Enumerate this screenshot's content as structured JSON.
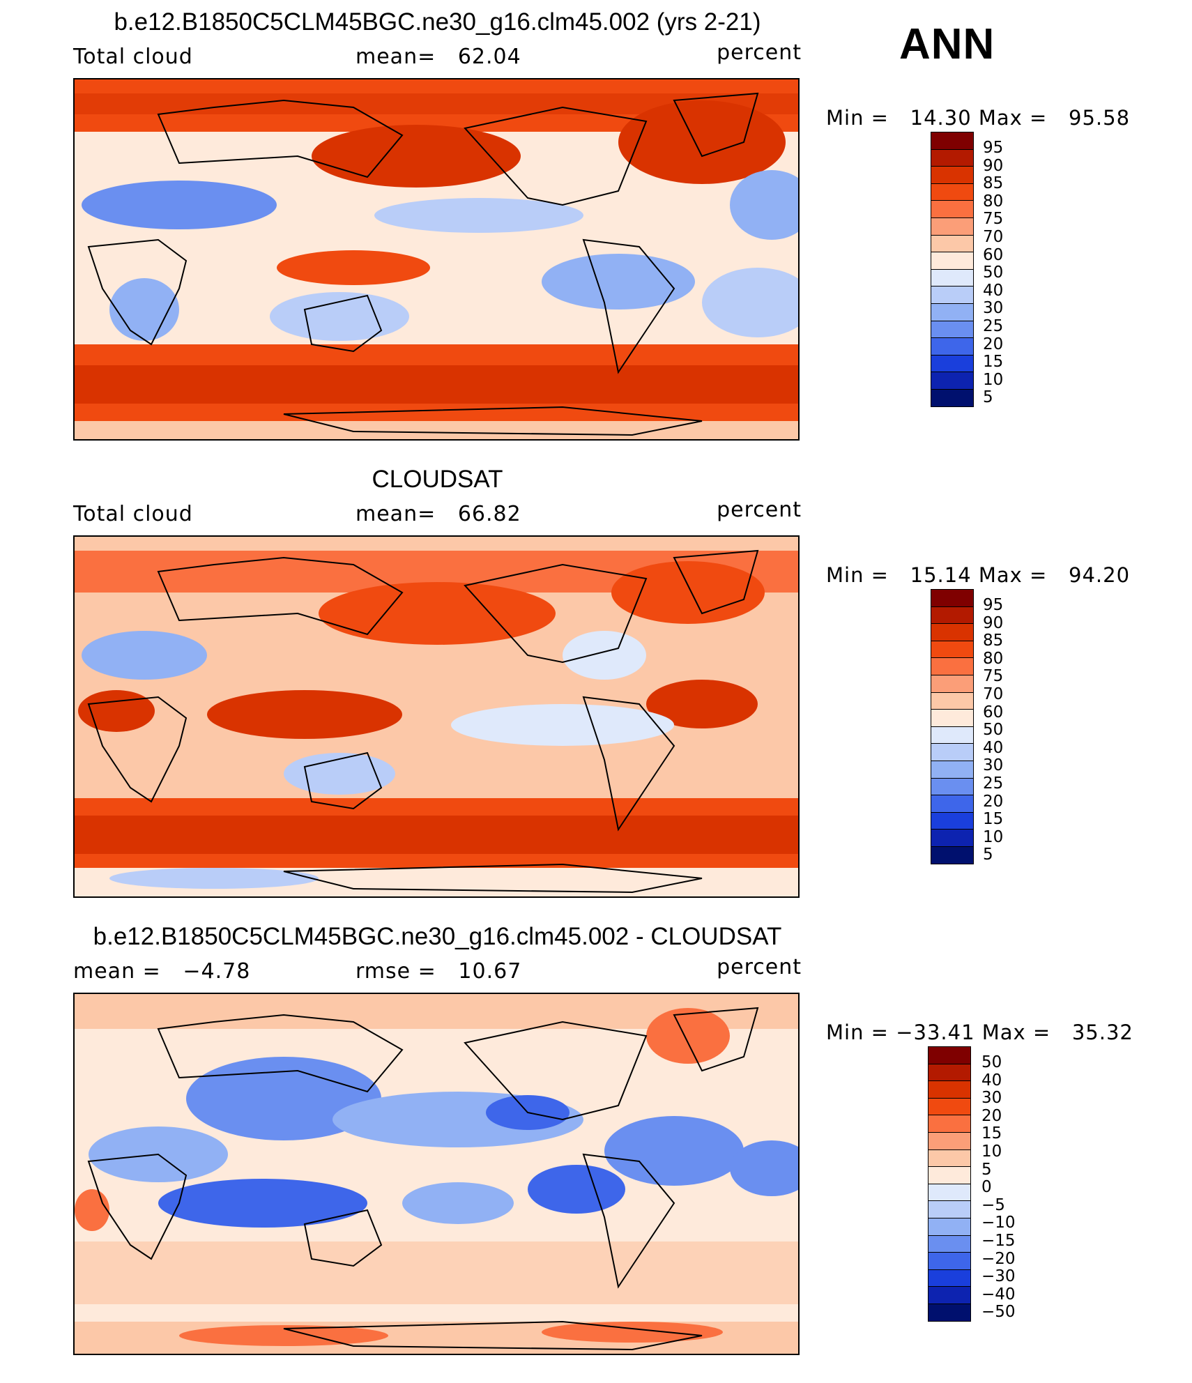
{
  "season": "ANN",
  "panels": [
    {
      "id": "model",
      "title": "b.e12.B1850C5CLM45BGC.ne30_g16.clm45.002 (yrs 2-21)",
      "left_label": "Total cloud",
      "mid_label": "mean=   62.04",
      "units": "percent",
      "minmax": "Min =   14.30 Max =   95.58",
      "levels": [
        "95",
        "90",
        "85",
        "80",
        "75",
        "70",
        "60",
        "50",
        "40",
        "30",
        "25",
        "20",
        "15",
        "10",
        "5"
      ]
    },
    {
      "id": "obs",
      "title": "CLOUDSAT",
      "left_label": "Total cloud",
      "mid_label": "mean=   66.82",
      "units": "percent",
      "minmax": "Min =   15.14 Max =   94.20",
      "levels": [
        "95",
        "90",
        "85",
        "80",
        "75",
        "70",
        "60",
        "50",
        "40",
        "30",
        "25",
        "20",
        "15",
        "10",
        "5"
      ]
    },
    {
      "id": "diff",
      "title": "b.e12.B1850C5CLM45BGC.ne30_g16.clm45.002 - CLOUDSAT",
      "left_label": "mean =   −4.78",
      "mid_label": "rmse =   10.67",
      "units": "percent",
      "minmax": "Min = −33.41 Max =   35.32",
      "levels": [
        "50",
        "40",
        "30",
        "20",
        "15",
        "10",
        "5",
        "0",
        "−5",
        "−10",
        "−15",
        "−20",
        "−30",
        "−40",
        "−50"
      ]
    }
  ],
  "colorbar_colors": [
    "#7f0000",
    "#b31a00",
    "#d93300",
    "#f04a10",
    "#fa7040",
    "#fb9e78",
    "#fcc8a8",
    "#feeadb",
    "#dfe9fb",
    "#b9cdf8",
    "#91b1f4",
    "#6a8ff0",
    "#3e66ea",
    "#1a3fdc",
    "#0d23b0",
    "#00106e"
  ],
  "colors": {
    "land_outline": "#000000",
    "frame": "#000000",
    "background": "#ffffff"
  }
}
